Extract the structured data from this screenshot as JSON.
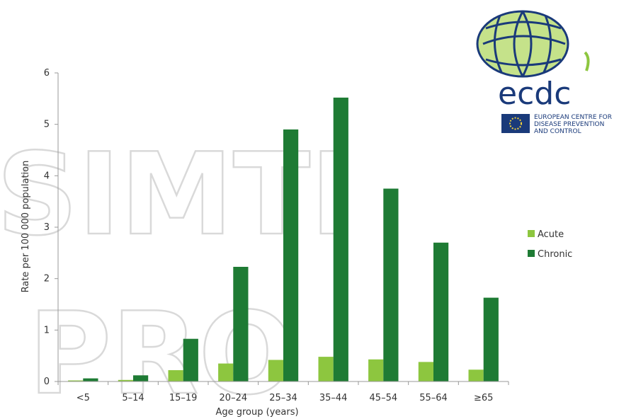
{
  "chart_data": {
    "type": "bar",
    "title": "",
    "xlabel": "Age group (years)",
    "ylabel": "Rate per 100 000 population",
    "ylim": [
      0,
      6
    ],
    "yticks": [
      0,
      1,
      2,
      3,
      4,
      5,
      6
    ],
    "categories": [
      "<5",
      "5–14",
      "15–19",
      "20–24",
      "25–34",
      "35–44",
      "45–54",
      "55–64",
      "≥65"
    ],
    "series": [
      {
        "name": "Acute",
        "color": "#8dc63f",
        "values": [
          0.02,
          0.03,
          0.22,
          0.35,
          0.42,
          0.48,
          0.43,
          0.38,
          0.23
        ]
      },
      {
        "name": "Chronic",
        "color": "#1e7b34",
        "values": [
          0.06,
          0.12,
          0.83,
          2.23,
          4.9,
          5.52,
          3.75,
          2.7,
          1.63
        ]
      }
    ],
    "legend": "right",
    "grid": false
  },
  "watermark": {
    "lines": [
      "SIMTI",
      "PRO"
    ],
    "color": "#d9d9d9"
  },
  "logo": {
    "name": "ecdc",
    "line1": "EUROPEAN CENTRE FOR",
    "line2": "DISEASE PREVENTION",
    "line3": "AND CONTROL",
    "green": "#8dc63f",
    "blue": "#1a3a7a"
  }
}
